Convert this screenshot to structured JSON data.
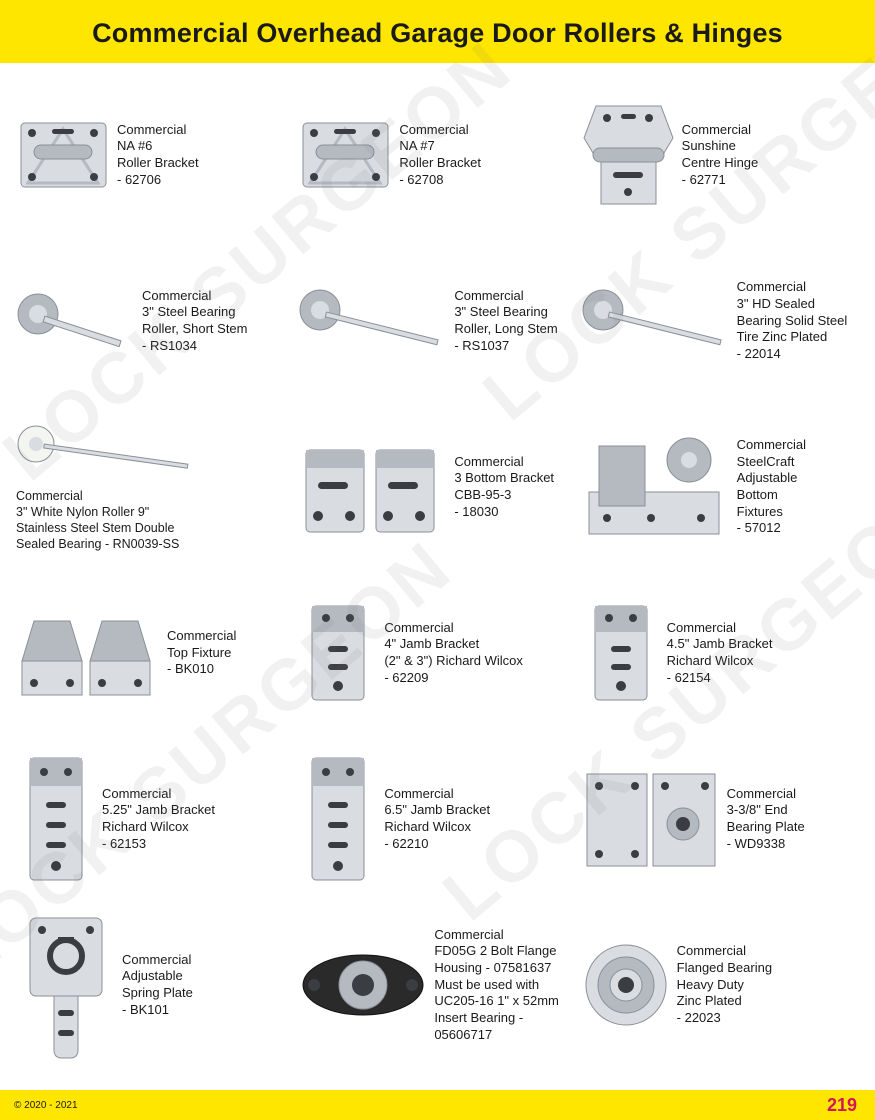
{
  "colors": {
    "header_bg": "#ffe600",
    "footer_bg": "#ffe600",
    "page_num": "#d4145a",
    "text": "#1a1a1a",
    "metal_light": "#d9dce0",
    "metal_mid": "#b5bac1",
    "metal_dark": "#8a9098",
    "hole": "#3a3d41"
  },
  "header": {
    "title": "Commercial Overhead Garage Door Rollers & Hinges"
  },
  "footer": {
    "copyright": "© 2020 - 2021",
    "page": "219"
  },
  "watermark": {
    "text": "LOCK SURGEON"
  },
  "items": [
    {
      "id": "p1",
      "desc": "Commercial\nNA #6\nRoller Bracket\n- 62706",
      "shape": "bracket_square"
    },
    {
      "id": "p2",
      "desc": "Commercial\nNA #7\nRoller Bracket\n- 62708",
      "shape": "bracket_square"
    },
    {
      "id": "p3",
      "desc": "Commercial\nSunshine\nCentre Hinge\n- 62771",
      "shape": "centre_hinge"
    },
    {
      "id": "p4",
      "desc": "Commercial\n3\" Steel Bearing\nRoller, Short Stem\n- RS1034",
      "shape": "roller_stem_short"
    },
    {
      "id": "p5",
      "desc": "Commercial\n3\" Steel Bearing\nRoller, Long Stem\n- RS1037",
      "shape": "roller_stem_long"
    },
    {
      "id": "p6",
      "desc": "Commercial\n3\" HD Sealed\nBearing Solid Steel\nTire Zinc Plated\n- 22014",
      "shape": "roller_stem_long"
    },
    {
      "id": "p7",
      "desc": "Commercial\n3\" White Nylon Roller 9\"\nStainless Steel Stem Double\nSealed Bearing - RN0039-SS",
      "shape": "roller_stem_white",
      "layout": "vertical"
    },
    {
      "id": "p8",
      "desc": "Commercial\n3 Bottom Bracket\nCBB-95-3\n- 18030",
      "shape": "bottom_bracket_pair"
    },
    {
      "id": "p9",
      "desc": "Commercial\nSteelCraft\nAdjustable\nBottom\nFixtures\n- 57012",
      "shape": "adjustable_bottom"
    },
    {
      "id": "p10",
      "desc": "Commercial\nTop Fixture\n- BK010",
      "shape": "top_fixture_pair"
    },
    {
      "id": "p11",
      "desc": "Commercial\n4\" Jamb Bracket\n(2\" & 3\") Richard Wilcox\n- 62209",
      "shape": "jamb_bracket"
    },
    {
      "id": "p12",
      "desc": "Commercial\n4.5\" Jamb Bracket\nRichard Wilcox\n- 62154",
      "shape": "jamb_bracket"
    },
    {
      "id": "p13",
      "desc": "Commercial\n5.25\" Jamb Bracket\nRichard Wilcox\n- 62153",
      "shape": "jamb_bracket_tall"
    },
    {
      "id": "p14",
      "desc": "Commercial\n6.5\" Jamb Bracket\nRichard Wilcox\n- 62210",
      "shape": "jamb_bracket_tall"
    },
    {
      "id": "p15",
      "desc": "Commercial\n3-3/8\" End\nBearing Plate\n- WD9338",
      "shape": "end_bearing_plate"
    },
    {
      "id": "p16",
      "desc": "Commercial\nAdjustable\nSpring Plate\n- BK101",
      "shape": "spring_plate"
    },
    {
      "id": "p17",
      "desc": "Commercial\nFD05G 2 Bolt Flange\nHousing - 07581637\nMust be used with\nUC205-16 1\" x 52mm\nInsert Bearing - 05606717",
      "shape": "flange_housing"
    },
    {
      "id": "p18",
      "desc": "Commercial\nFlanged Bearing\nHeavy Duty\nZinc Plated\n- 22023",
      "shape": "flanged_bearing"
    }
  ]
}
